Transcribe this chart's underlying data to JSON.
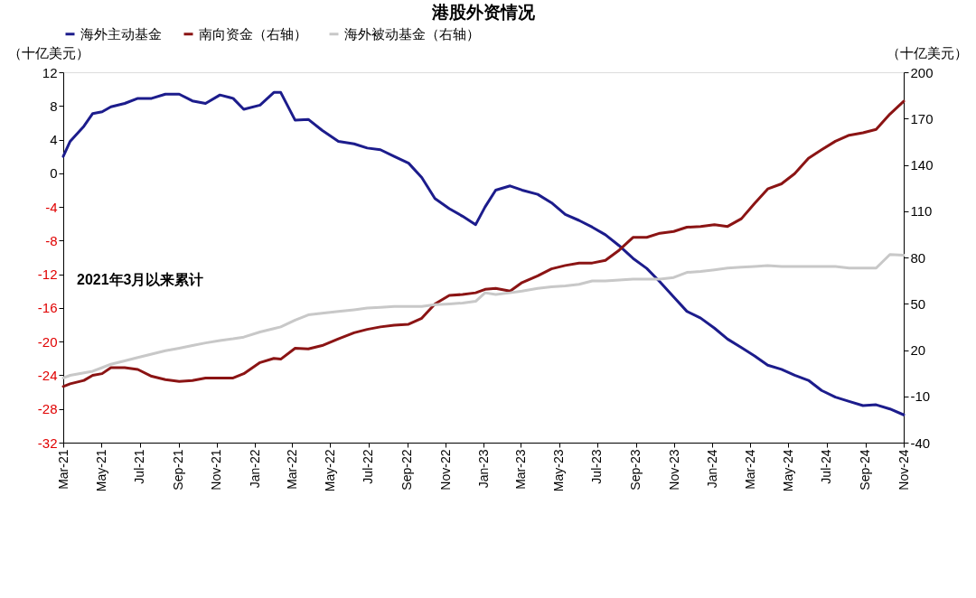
{
  "chart_data": {
    "type": "line",
    "title": "港股外资情况",
    "ylabel": "（十亿美元）",
    "y2label": "（十亿美元）",
    "annotations": [
      "2021年3月以来累计"
    ],
    "x": [
      "2021-03-01",
      "2021-03-12",
      "2021-04-03",
      "2021-04-17",
      "2021-05-02",
      "2021-05-16",
      "2021-06-07",
      "2021-06-28",
      "2021-07-20",
      "2021-08-11",
      "2021-09-02",
      "2021-09-23",
      "2021-10-14",
      "2021-11-06",
      "2021-11-27",
      "2021-12-14",
      "2022-01-09",
      "2022-01-31",
      "2022-02-11",
      "2022-03-06",
      "2022-03-27",
      "2022-04-18",
      "2022-05-14",
      "2022-06-08",
      "2022-06-29",
      "2022-07-20",
      "2022-08-11",
      "2022-09-03",
      "2022-09-24",
      "2022-10-15",
      "2022-11-07",
      "2022-11-28",
      "2022-12-19",
      "2023-01-03",
      "2023-01-20",
      "2023-02-12",
      "2023-03-03",
      "2023-03-28",
      "2023-04-19",
      "2023-05-11",
      "2023-06-02",
      "2023-06-23",
      "2023-07-14",
      "2023-08-05",
      "2023-08-27",
      "2023-09-18",
      "2023-10-09",
      "2023-10-31",
      "2023-11-21",
      "2023-12-13",
      "2024-01-04",
      "2024-01-25",
      "2024-02-16",
      "2024-03-08",
      "2024-03-29",
      "2024-04-20",
      "2024-05-11",
      "2024-06-02",
      "2024-06-23",
      "2024-07-15",
      "2024-08-06",
      "2024-08-28",
      "2024-09-18",
      "2024-10-10",
      "2024-11-01"
    ],
    "series": [
      {
        "name": "海外主动基金",
        "color": "#1c1c8c",
        "values": [
          2.0,
          3.8,
          5.6,
          7.1,
          7.3,
          7.9,
          8.3,
          8.9,
          8.9,
          9.4,
          9.4,
          8.6,
          8.3,
          9.3,
          8.9,
          7.6,
          8.1,
          9.6,
          9.6,
          6.3,
          6.4,
          5.1,
          3.8,
          3.5,
          3.0,
          2.8,
          2.0,
          1.2,
          -0.5,
          -3.0,
          -4.2,
          -5.1,
          -6.1,
          -4.0,
          -2.0,
          -1.5,
          -2.0,
          -2.5,
          -3.5,
          -4.9,
          -5.6,
          -6.4,
          -7.3,
          -8.6,
          -10.1,
          -11.3,
          -12.9,
          -14.7,
          -16.4,
          -17.2,
          -18.4,
          -19.7,
          -20.7,
          -21.7,
          -22.8,
          -23.3,
          -24.0,
          -24.6,
          -25.8,
          -26.6,
          -27.1,
          -27.6,
          -27.5,
          -28.0,
          -28.7
        ]
      },
      {
        "name": "南向资金（右轴）",
        "color": "#8b1414",
        "axis": "y2",
        "values": [
          -3.6,
          -1.9,
          0.3,
          3.6,
          4.7,
          8.6,
          8.6,
          7.4,
          3.0,
          0.8,
          -0.3,
          0.3,
          1.9,
          1.9,
          1.9,
          4.7,
          11.9,
          14.6,
          14.1,
          21.2,
          20.7,
          22.9,
          27.3,
          31.2,
          33.4,
          35.0,
          36.1,
          36.7,
          40.6,
          49.9,
          55.4,
          56.0,
          57.1,
          59.3,
          59.9,
          58.2,
          63.7,
          68.1,
          72.6,
          74.8,
          76.4,
          76.4,
          78.1,
          84.7,
          93.0,
          93.0,
          95.7,
          96.8,
          99.6,
          100.1,
          101.2,
          100.1,
          105.1,
          115.0,
          124.4,
          127.7,
          134.3,
          144.3,
          149.8,
          155.3,
          159.2,
          160.8,
          163.0,
          172.9,
          181.2
        ]
      },
      {
        "name": "海外被动基金（右轴）",
        "color": "#c8c8c8",
        "axis": "y2",
        "values": [
          1.9,
          3.6,
          5.2,
          6.3,
          8.6,
          10.8,
          13.0,
          15.2,
          17.4,
          19.6,
          21.2,
          22.9,
          24.6,
          26.2,
          27.3,
          28.4,
          31.7,
          33.9,
          35.0,
          39.4,
          42.8,
          43.9,
          45.0,
          46.1,
          47.2,
          47.7,
          48.3,
          48.3,
          48.3,
          49.4,
          49.9,
          50.5,
          51.6,
          57.1,
          56.0,
          57.1,
          58.2,
          59.9,
          61.0,
          61.5,
          62.6,
          64.8,
          64.8,
          65.4,
          65.9,
          65.9,
          65.9,
          67.0,
          70.3,
          70.9,
          72.0,
          73.1,
          73.7,
          74.2,
          74.8,
          74.2,
          74.2,
          74.2,
          74.2,
          74.2,
          73.1,
          73.1,
          73.1,
          81.9,
          81.4
        ]
      }
    ],
    "xlim": [
      "2021-03-01",
      "2024-11-01"
    ],
    "xticks": [
      {
        "value": "2021-03-01",
        "label": "Mar-21"
      },
      {
        "value": "2021-05-01",
        "label": "May-21"
      },
      {
        "value": "2021-07-01",
        "label": "Jul-21"
      },
      {
        "value": "2021-09-01",
        "label": "Sep-21"
      },
      {
        "value": "2021-11-01",
        "label": "Nov-21"
      },
      {
        "value": "2022-01-01",
        "label": "Jan-22"
      },
      {
        "value": "2022-03-01",
        "label": "Mar-22"
      },
      {
        "value": "2022-05-01",
        "label": "May-22"
      },
      {
        "value": "2022-07-01",
        "label": "Jul-22"
      },
      {
        "value": "2022-09-01",
        "label": "Sep-22"
      },
      {
        "value": "2022-11-01",
        "label": "Nov-22"
      },
      {
        "value": "2023-01-01",
        "label": "Jan-23"
      },
      {
        "value": "2023-03-01",
        "label": "Mar-23"
      },
      {
        "value": "2023-05-01",
        "label": "May-23"
      },
      {
        "value": "2023-07-01",
        "label": "Jul-23"
      },
      {
        "value": "2023-09-01",
        "label": "Sep-23"
      },
      {
        "value": "2023-11-01",
        "label": "Nov-23"
      },
      {
        "value": "2024-01-01",
        "label": "Jan-24"
      },
      {
        "value": "2024-03-01",
        "label": "Mar-24"
      },
      {
        "value": "2024-05-01",
        "label": "May-24"
      },
      {
        "value": "2024-07-01",
        "label": "Jul-24"
      },
      {
        "value": "2024-09-01",
        "label": "Sep-24"
      },
      {
        "value": "2024-11-01",
        "label": "Nov-24"
      }
    ],
    "ylim": [
      -32,
      12
    ],
    "yticks": [
      -32,
      -28,
      -24,
      -20,
      -16,
      -12,
      -8,
      -4,
      0,
      4,
      8,
      12
    ],
    "y2lim": [
      -40,
      200
    ],
    "y2ticks": [
      -40,
      -10,
      20,
      50,
      80,
      110,
      140,
      170,
      200
    ],
    "grid": false,
    "legend": "top",
    "marker": "none",
    "line_style": "solid"
  }
}
